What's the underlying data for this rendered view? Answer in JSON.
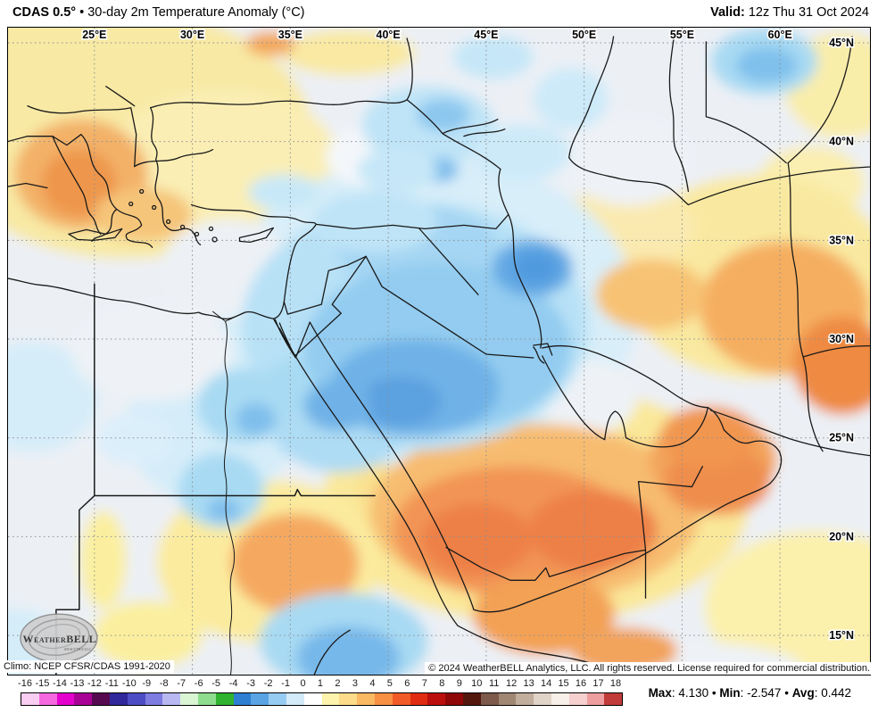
{
  "header": {
    "product": "CDAS 0.5°",
    "bullet": "•",
    "title": "30-day 2m Temperature Anomaly (°C)",
    "valid_label": "Valid:",
    "valid_value": "12z Thu 31 Oct 2024"
  },
  "map": {
    "lon_labels": [
      "25°E",
      "30°E",
      "35°E",
      "40°E",
      "45°E",
      "50°E",
      "55°E",
      "60°E"
    ],
    "lat_labels": [
      "45°N",
      "40°N",
      "35°N",
      "30°N",
      "25°N",
      "20°N",
      "15°N"
    ],
    "climo": "Climo: NCEP CFSR/CDAS 1991-2020",
    "copyright": "© 2024 WeatherBELL Analytics, LLC. All rights reserved. License required for commercial distribution.",
    "logo": {
      "brand": "WeatherBELL",
      "sub": "ANALYTICS LLC"
    }
  },
  "colorbar": {
    "ticks": [
      "-16",
      "-15",
      "-14",
      "-13",
      "-12",
      "-11",
      "-10",
      "-9",
      "-8",
      "-7",
      "-6",
      "-5",
      "-4",
      "-3",
      "-2",
      "-1",
      "0",
      "1",
      "2",
      "3",
      "4",
      "5",
      "6",
      "7",
      "8",
      "9",
      "10",
      "11",
      "12",
      "13",
      "14",
      "15",
      "16",
      "17",
      "18"
    ],
    "cell_colors": [
      "#f9cdf1",
      "#f568e0",
      "#e400cd",
      "#a80295",
      "#56094f",
      "#31289b",
      "#4d4cc4",
      "#7e7ce0",
      "#b9b8f3",
      "#d9f5d4",
      "#8edd8e",
      "#2fb32f",
      "#2e7fd1",
      "#5aa4e4",
      "#97ccf2",
      "#d3eaf9",
      "#ffffff",
      "#fdf3ac",
      "#fcdc8a",
      "#fab963",
      "#f79043",
      "#f15b28",
      "#e02d12",
      "#bb0f0e",
      "#8f0707",
      "#54170d",
      "#7d5a4c",
      "#a08774",
      "#c2ae9d",
      "#e0d4c8",
      "#f7efe9",
      "#f6cfcf",
      "#ee9e9e",
      "#c23b3b"
    ]
  },
  "stats": {
    "max_label": "Max",
    "max_value": ": 4.130",
    "bullet": "•",
    "min_label": "Min",
    "min_value": ": -2.547",
    "avg_label": "Avg",
    "avg_value": ": 0.442"
  }
}
